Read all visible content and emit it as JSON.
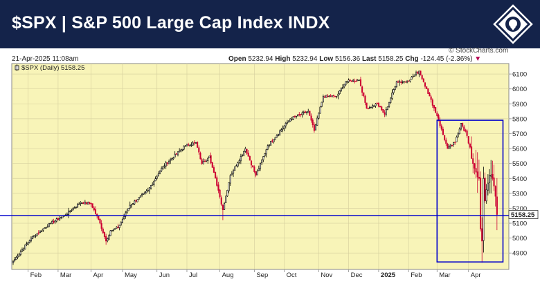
{
  "header": {
    "title": "$SPX | S&P 500 Large Cap Index INDX",
    "logo": "lion-shield-icon"
  },
  "infobar": {
    "timestamp": "21-Apr-2025 11:08am",
    "open_label": "Open",
    "open_value": "5232.94",
    "high_label": "High",
    "high_value": "5232.94",
    "low_label": "Low",
    "low_value": "5156.36",
    "last_label": "Last",
    "last_value": "5158.25",
    "chg_label": "Chg",
    "chg_value": "-124.45 (-2.36%)",
    "chg_arrow": "▼",
    "credit": "© StockCharts.com"
  },
  "colors": {
    "title_bg": "#14234a",
    "plot_bg": "#f8f4b8",
    "up": "#000000",
    "down": "#cc0033",
    "annotation": "#0000cc"
  },
  "chart_data": {
    "type": "candlestick",
    "legend": "$SPX (Daily) 5158.25",
    "legend_icon": "candle-icon",
    "last_value": 5158.25,
    "last_label": "5158.25",
    "ylim": [
      4790,
      6170
    ],
    "y_ticks": [
      4900,
      5000,
      5100,
      5200,
      5300,
      5400,
      5500,
      5600,
      5700,
      5800,
      5900,
      6000,
      6100
    ],
    "x_labels": [
      {
        "label": "Feb",
        "bold": false,
        "day": 10
      },
      {
        "label": "Mar",
        "bold": false,
        "day": 30
      },
      {
        "label": "Apr",
        "bold": false,
        "day": 52
      },
      {
        "label": "May",
        "bold": false,
        "day": 73
      },
      {
        "label": "Jun",
        "bold": false,
        "day": 96
      },
      {
        "label": "Jul",
        "bold": false,
        "day": 116
      },
      {
        "label": "Aug",
        "bold": false,
        "day": 138
      },
      {
        "label": "Sep",
        "bold": false,
        "day": 161
      },
      {
        "label": "Oct",
        "bold": false,
        "day": 181
      },
      {
        "label": "Nov",
        "bold": false,
        "day": 204
      },
      {
        "label": "Dec",
        "bold": false,
        "day": 224
      },
      {
        "label": "2025",
        "bold": true,
        "day": 244
      },
      {
        "label": "Feb",
        "bold": false,
        "day": 264
      },
      {
        "label": "Mar",
        "bold": false,
        "day": 283
      },
      {
        "label": "Apr",
        "bold": false,
        "day": 304
      }
    ],
    "anchors": [
      {
        "day": 0,
        "close": 4845
      },
      {
        "day": 12,
        "close": 5000
      },
      {
        "day": 25,
        "close": 5100
      },
      {
        "day": 34,
        "close": 5150
      },
      {
        "day": 45,
        "close": 5240
      },
      {
        "day": 52,
        "close": 5230
      },
      {
        "day": 58,
        "close": 5100
      },
      {
        "day": 62,
        "close": 4980
      },
      {
        "day": 65,
        "close": 5050
      },
      {
        "day": 70,
        "close": 5070
      },
      {
        "day": 78,
        "close": 5220
      },
      {
        "day": 90,
        "close": 5320
      },
      {
        "day": 100,
        "close": 5480
      },
      {
        "day": 115,
        "close": 5620
      },
      {
        "day": 122,
        "close": 5640
      },
      {
        "day": 126,
        "close": 5500
      },
      {
        "day": 131,
        "close": 5550
      },
      {
        "day": 137,
        "close": 5320
      },
      {
        "day": 140,
        "close": 5190
      },
      {
        "day": 145,
        "close": 5420
      },
      {
        "day": 155,
        "close": 5600
      },
      {
        "day": 162,
        "close": 5420
      },
      {
        "day": 170,
        "close": 5620
      },
      {
        "day": 185,
        "close": 5800
      },
      {
        "day": 197,
        "close": 5850
      },
      {
        "day": 201,
        "close": 5720
      },
      {
        "day": 207,
        "close": 5950
      },
      {
        "day": 216,
        "close": 5950
      },
      {
        "day": 222,
        "close": 6050
      },
      {
        "day": 231,
        "close": 6060
      },
      {
        "day": 236,
        "close": 5870
      },
      {
        "day": 243,
        "close": 5900
      },
      {
        "day": 248,
        "close": 5830
      },
      {
        "day": 256,
        "close": 6050
      },
      {
        "day": 263,
        "close": 6050
      },
      {
        "day": 271,
        "close": 6120
      },
      {
        "day": 276,
        "close": 6000
      },
      {
        "day": 283,
        "close": 5820
      },
      {
        "day": 290,
        "close": 5600
      },
      {
        "day": 295,
        "close": 5640
      },
      {
        "day": 299,
        "close": 5770
      },
      {
        "day": 302,
        "close": 5720
      },
      {
        "day": 307,
        "close": 5500
      },
      {
        "day": 311,
        "close": 5400
      },
      {
        "day": 312,
        "close": 5060
      },
      {
        "day": 313,
        "close": 4980
      },
      {
        "day": 314,
        "close": 5400
      },
      {
        "day": 315,
        "close": 5250
      },
      {
        "day": 318,
        "close": 5420
      },
      {
        "day": 320,
        "close": 5400
      },
      {
        "day": 322,
        "close": 5280
      },
      {
        "day": 323,
        "close": 5158
      }
    ],
    "lows": [
      {
        "day": 0,
        "low": 4820
      },
      {
        "day": 62,
        "low": 4955
      },
      {
        "day": 140,
        "low": 5120
      },
      {
        "day": 313,
        "low": 4835
      }
    ],
    "annotations": {
      "support_line": 5150,
      "box": {
        "day_start": 283,
        "day_end": 327,
        "price_top": 5790,
        "price_bottom": 4840
      }
    }
  }
}
